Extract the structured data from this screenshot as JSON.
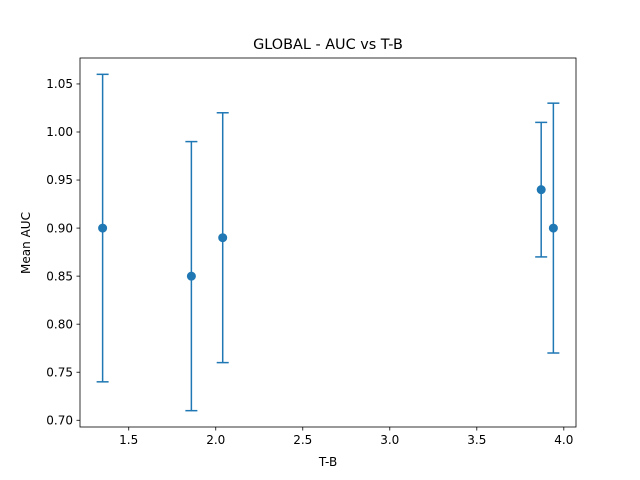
{
  "chart_data": {
    "type": "scatter",
    "title": "GLOBAL - AUC vs T-B",
    "xlabel": "T-B",
    "ylabel": "Mean AUC",
    "xlim": [
      1.22,
      4.07
    ],
    "ylim": [
      0.693,
      1.077
    ],
    "x_ticks": [
      "1.5",
      "2.0",
      "2.5",
      "3.0",
      "3.5",
      "4.0"
    ],
    "y_ticks": [
      "0.70",
      "0.75",
      "0.80",
      "0.85",
      "0.90",
      "0.95",
      "1.00",
      "1.05"
    ],
    "grid": false,
    "color": "#1f77b4",
    "points": [
      {
        "x": 1.35,
        "y": 0.9,
        "err_low": 0.74,
        "err_high": 1.06
      },
      {
        "x": 1.86,
        "y": 0.85,
        "err_low": 0.71,
        "err_high": 0.99
      },
      {
        "x": 2.04,
        "y": 0.89,
        "err_low": 0.76,
        "err_high": 1.02
      },
      {
        "x": 3.87,
        "y": 0.94,
        "err_low": 0.87,
        "err_high": 1.01
      },
      {
        "x": 3.94,
        "y": 0.9,
        "err_low": 0.77,
        "err_high": 1.03
      }
    ]
  }
}
